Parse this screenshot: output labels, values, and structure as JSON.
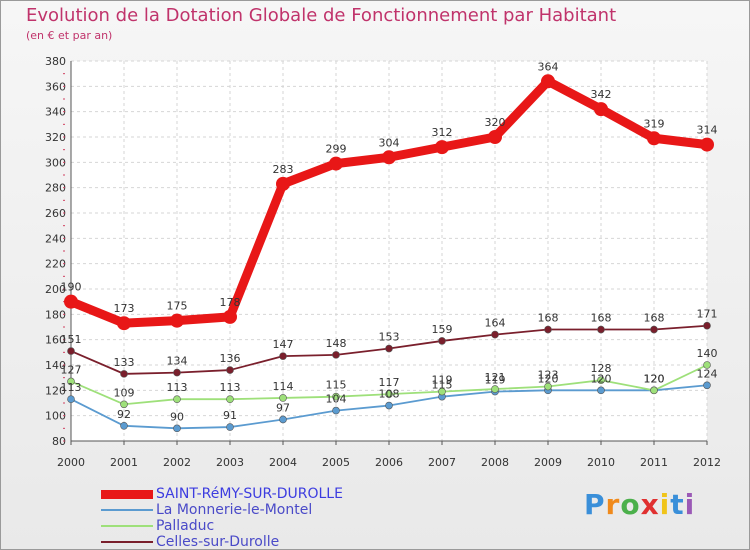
{
  "chart_data": {
    "type": "line",
    "title": "Evolution de la Dotation Globale de Fonctionnement par Habitant",
    "subtitle": "(en € et par an)",
    "xlabel": "",
    "ylabel": "",
    "ylim": [
      80,
      380
    ],
    "ytick_step": 20,
    "grid": true,
    "legend_position": "bottom-left",
    "categories": [
      "2000",
      "2001",
      "2002",
      "2003",
      "2004",
      "2005",
      "2006",
      "2007",
      "2008",
      "2009",
      "2010",
      "2011",
      "2012"
    ],
    "series": [
      {
        "name": "SAINT-RéMY-SUR-DUROLLE",
        "color": "#e81717",
        "values": [
          190,
          173,
          175,
          178,
          283,
          299,
          304,
          312,
          320,
          364,
          342,
          319,
          314
        ]
      },
      {
        "name": "La Monnerie-le-Montel",
        "color": "#5b9bd0",
        "values": [
          113,
          92,
          90,
          91,
          97,
          104,
          108,
          115,
          119,
          120,
          120,
          120,
          124
        ]
      },
      {
        "name": "Palladuc",
        "color": "#9ee07a",
        "values": [
          127,
          109,
          113,
          113,
          114,
          115,
          117,
          119,
          121,
          123,
          128,
          120,
          140
        ]
      },
      {
        "name": "Celles-sur-Durolle",
        "color": "#7a1f2c",
        "values": [
          151,
          133,
          134,
          136,
          147,
          148,
          153,
          159,
          164,
          168,
          168,
          168,
          171
        ]
      }
    ]
  },
  "brand": {
    "letters": [
      "P",
      "r",
      "o",
      "x",
      "i",
      "t",
      "i"
    ],
    "colors": [
      "#3a8fd9",
      "#f08a1c",
      "#4bb04b",
      "#e03030",
      "#f0c419",
      "#3a8fd9",
      "#9b59b6"
    ]
  }
}
